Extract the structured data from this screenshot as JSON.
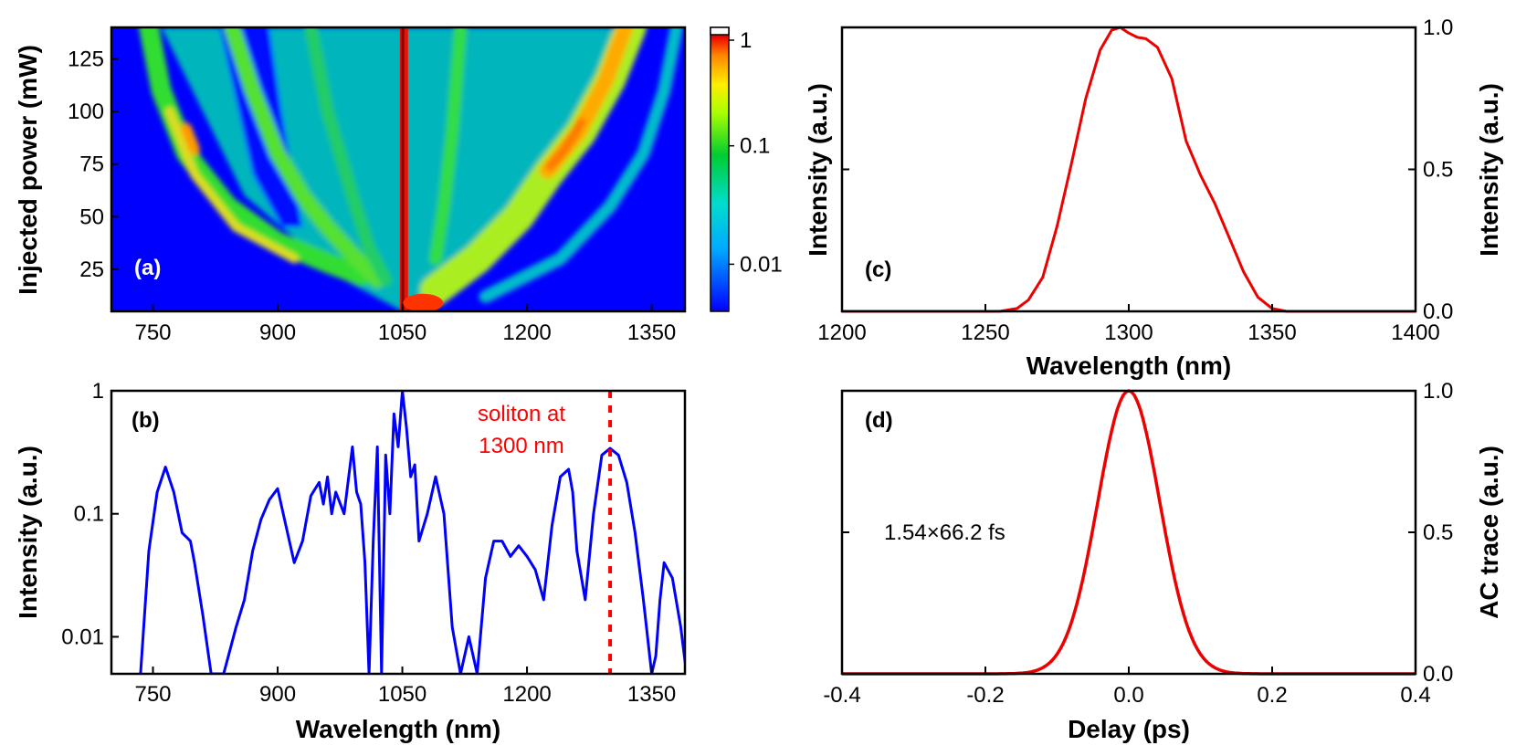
{
  "chart_data": [
    {
      "panel": "(a)",
      "type": "heatmap",
      "title": "",
      "xlabel": "",
      "ylabel": "Injected power (mW)",
      "xlim": [
        700,
        1390
      ],
      "ylim": [
        5,
        140
      ],
      "xticks": [
        750,
        900,
        1050,
        1200,
        1350
      ],
      "yticks": [
        25,
        50,
        75,
        100,
        125
      ],
      "colorbar": {
        "scale": "log",
        "range": [
          0.004,
          1
        ],
        "ticks": [
          "1",
          "0.1",
          "0.01"
        ],
        "tick_values": [
          1,
          0.1,
          0.01
        ]
      },
      "colors": {
        "low": "#0000ff",
        "mid": "#00cc33",
        "high": "#ee0000"
      },
      "features": {
        "pump_wavelength": 1050,
        "branches": [
          {
            "name": "blue-edge",
            "at_power_140": 740,
            "at_power_20": 990
          },
          {
            "name": "inner-blue",
            "at_power_140": 840,
            "at_power_20": 1000
          },
          {
            "name": "soliton",
            "at_power_140": 1300,
            "at_power_20": 1090
          },
          {
            "name": "red-edge",
            "at_power_140": 1380,
            "at_power_20": 1140
          }
        ]
      }
    },
    {
      "panel": "(b)",
      "type": "line",
      "title": "",
      "xlabel": "Wavelength (nm)",
      "ylabel": "Intensity (a.u.)",
      "xlim": [
        700,
        1390
      ],
      "ylim": [
        0.005,
        1
      ],
      "yscale": "log",
      "xticks": [
        750,
        900,
        1050,
        1200,
        1350
      ],
      "yticks": [
        "1",
        "0.1",
        "0.01"
      ],
      "ytick_values": [
        1,
        0.1,
        0.01
      ],
      "color": "#0000ff",
      "x": [
        735,
        745,
        755,
        765,
        775,
        785,
        795,
        800,
        810,
        820,
        835,
        850,
        860,
        870,
        880,
        890,
        900,
        910,
        920,
        930,
        940,
        950,
        955,
        960,
        965,
        970,
        980,
        990,
        995,
        1000,
        1005,
        1010,
        1015,
        1020,
        1025,
        1030,
        1035,
        1040,
        1045,
        1050,
        1055,
        1060,
        1065,
        1070,
        1080,
        1090,
        1100,
        1110,
        1120,
        1130,
        1140,
        1150,
        1160,
        1170,
        1180,
        1190,
        1200,
        1210,
        1220,
        1230,
        1240,
        1250,
        1255,
        1260,
        1270,
        1280,
        1290,
        1300,
        1310,
        1320,
        1330,
        1340,
        1350,
        1355,
        1360,
        1365,
        1375,
        1385,
        1392
      ],
      "values": [
        0.005,
        0.05,
        0.15,
        0.24,
        0.15,
        0.07,
        0.06,
        0.04,
        0.015,
        0.005,
        0.005,
        0.012,
        0.02,
        0.05,
        0.09,
        0.13,
        0.16,
        0.08,
        0.04,
        0.06,
        0.14,
        0.18,
        0.12,
        0.2,
        0.1,
        0.15,
        0.1,
        0.35,
        0.15,
        0.12,
        0.04,
        0.005,
        0.06,
        0.35,
        0.005,
        0.3,
        0.1,
        0.65,
        0.35,
        1.0,
        0.5,
        0.2,
        0.25,
        0.06,
        0.1,
        0.2,
        0.1,
        0.012,
        0.005,
        0.01,
        0.005,
        0.03,
        0.06,
        0.06,
        0.045,
        0.055,
        0.045,
        0.035,
        0.02,
        0.08,
        0.2,
        0.23,
        0.15,
        0.05,
        0.02,
        0.1,
        0.3,
        0.34,
        0.3,
        0.18,
        0.07,
        0.02,
        0.005,
        0.007,
        0.02,
        0.04,
        0.03,
        0.012,
        0.005
      ],
      "annotation": {
        "lines": [
          "soliton at",
          "1300 nm"
        ],
        "x": 1300,
        "color": "#ff0000"
      }
    },
    {
      "panel": "(c)",
      "type": "line",
      "title": "",
      "xlabel": "Wavelength (nm)",
      "ylabel": "Intensity (a.u.)",
      "ylabel_right": "Intensity (a.u.)",
      "xlim": [
        1200,
        1400
      ],
      "ylim": [
        0,
        1
      ],
      "xticks": [
        1200,
        1250,
        1300,
        1350,
        1400
      ],
      "yticks_right": [
        "0.0",
        "0.5",
        "1.0"
      ],
      "ytick_values": [
        0,
        0.5,
        1
      ],
      "color": "#ee0000",
      "x": [
        1200,
        1255,
        1261,
        1265,
        1270,
        1275,
        1280,
        1285,
        1290,
        1294,
        1297,
        1300,
        1303,
        1306,
        1310,
        1315,
        1320,
        1325,
        1330,
        1335,
        1340,
        1345,
        1350,
        1355,
        1400
      ],
      "values": [
        0,
        0,
        0.01,
        0.04,
        0.12,
        0.3,
        0.52,
        0.75,
        0.92,
        0.99,
        1.0,
        0.98,
        0.965,
        0.96,
        0.93,
        0.82,
        0.6,
        0.48,
        0.38,
        0.26,
        0.14,
        0.05,
        0.01,
        0,
        0
      ]
    },
    {
      "panel": "(d)",
      "type": "line",
      "title": "",
      "xlabel": "Delay (ps)",
      "ylabel_right": "AC trace (a.u.)",
      "xlim": [
        -0.4,
        0.4
      ],
      "ylim": [
        0,
        1
      ],
      "xticks": [
        "-0.4",
        "-0.2",
        "0.0",
        "0.2",
        "0.4"
      ],
      "xtick_values": [
        -0.4,
        -0.2,
        0,
        0.2,
        0.4
      ],
      "yticks_right": [
        "0.0",
        "0.5",
        "1.0"
      ],
      "ytick_values": [
        0,
        0.5,
        1
      ],
      "color": "#ee0000",
      "gaussian_fwhm_ps": 0.102,
      "annotation": "1.54×66.2 fs"
    }
  ]
}
